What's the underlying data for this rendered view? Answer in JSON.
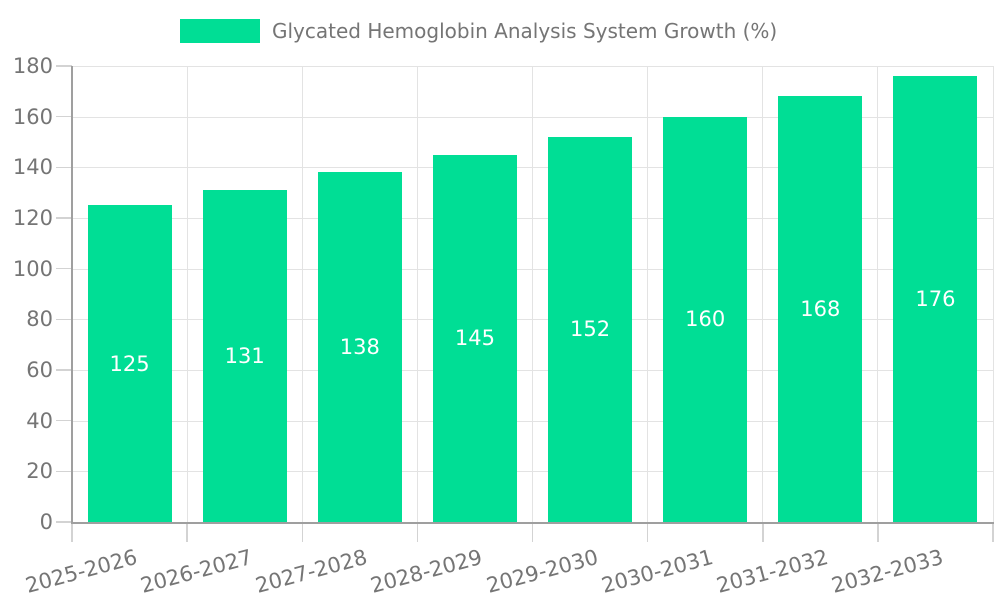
{
  "legend": {
    "label": "Glycated Hemoglobin Analysis System Growth (%)"
  },
  "colors": {
    "bar": "#00DE95",
    "grid": "#e3e3e3",
    "tick": "#d3d3d3",
    "axis": "#9f9f9f",
    "text": "#757575",
    "value_label": "#ffffff",
    "background": "#ffffff"
  },
  "chart_data": {
    "type": "bar",
    "title": "Glycated Hemoglobin Analysis System Growth (%)",
    "categories": [
      "2025-2026",
      "2026-2027",
      "2027-2028",
      "2028-2029",
      "2029-2030",
      "2030-2031",
      "2031-2032",
      "2032-2033"
    ],
    "values": [
      125,
      131,
      138,
      145,
      152,
      160,
      168,
      176
    ],
    "bar_labels": [
      125,
      131,
      138,
      145,
      152,
      160,
      168,
      176
    ],
    "xlabel": "",
    "ylabel": "",
    "ylim": [
      0,
      180
    ],
    "ytick_step": 20,
    "ytick_labels": [
      "0",
      "20",
      "40",
      "60",
      "80",
      "100",
      "120",
      "140",
      "160",
      "180"
    ],
    "grid": true,
    "legend_position": "top-center",
    "x_label_rotation_deg": -15
  }
}
